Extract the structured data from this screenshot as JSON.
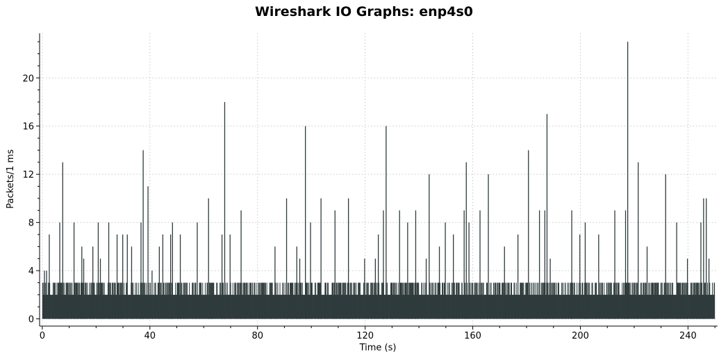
{
  "chart_data": {
    "type": "bar",
    "title": "Wireshark IO Graphs: enp4s0",
    "xlabel": "Time (s)",
    "ylabel": "Packets/1 ms",
    "xlim": [
      -1,
      251
    ],
    "ylim": [
      -0.6,
      23.7
    ],
    "xticks": [
      0,
      40,
      80,
      120,
      160,
      200,
      240
    ],
    "yticks": [
      0,
      4,
      8,
      12,
      16,
      20
    ],
    "grid": true,
    "bar_color": "#2f3b3c",
    "baseline": {
      "description": "dense background traffic, 0-3 packets per 1 ms interval",
      "x_range": [
        0,
        250
      ],
      "typical_max": 2,
      "frequent_value": 3
    },
    "series": [
      {
        "values": [
          {
            "x": 0.8,
            "y": 4
          },
          {
            "x": 1.6,
            "y": 4
          },
          {
            "x": 2.6,
            "y": 7
          },
          {
            "x": 6.5,
            "y": 8
          },
          {
            "x": 7.6,
            "y": 13
          },
          {
            "x": 11.8,
            "y": 8
          },
          {
            "x": 14.7,
            "y": 6
          },
          {
            "x": 15.4,
            "y": 5
          },
          {
            "x": 18.8,
            "y": 6
          },
          {
            "x": 20.8,
            "y": 8
          },
          {
            "x": 21.6,
            "y": 5
          },
          {
            "x": 24.7,
            "y": 8
          },
          {
            "x": 27.8,
            "y": 7
          },
          {
            "x": 29.9,
            "y": 7
          },
          {
            "x": 31.6,
            "y": 7
          },
          {
            "x": 33.2,
            "y": 6
          },
          {
            "x": 36.7,
            "y": 8
          },
          {
            "x": 37.5,
            "y": 14
          },
          {
            "x": 39.3,
            "y": 11
          },
          {
            "x": 40.8,
            "y": 4
          },
          {
            "x": 43.5,
            "y": 6
          },
          {
            "x": 44.8,
            "y": 7
          },
          {
            "x": 47.7,
            "y": 7
          },
          {
            "x": 48.4,
            "y": 8
          },
          {
            "x": 51.3,
            "y": 7
          },
          {
            "x": 57.6,
            "y": 8
          },
          {
            "x": 61.8,
            "y": 10
          },
          {
            "x": 66.8,
            "y": 7
          },
          {
            "x": 67.8,
            "y": 18
          },
          {
            "x": 69.8,
            "y": 7
          },
          {
            "x": 73.9,
            "y": 9
          },
          {
            "x": 86.5,
            "y": 6
          },
          {
            "x": 90.8,
            "y": 10
          },
          {
            "x": 94.6,
            "y": 6
          },
          {
            "x": 95.7,
            "y": 5
          },
          {
            "x": 97.8,
            "y": 16
          },
          {
            "x": 99.7,
            "y": 8
          },
          {
            "x": 103.6,
            "y": 10
          },
          {
            "x": 108.8,
            "y": 9
          },
          {
            "x": 113.8,
            "y": 10
          },
          {
            "x": 119.8,
            "y": 5
          },
          {
            "x": 123.8,
            "y": 5
          },
          {
            "x": 124.9,
            "y": 7
          },
          {
            "x": 126.8,
            "y": 9
          },
          {
            "x": 127.8,
            "y": 16
          },
          {
            "x": 132.8,
            "y": 9
          },
          {
            "x": 135.8,
            "y": 8
          },
          {
            "x": 138.8,
            "y": 9
          },
          {
            "x": 142.7,
            "y": 5
          },
          {
            "x": 143.8,
            "y": 12
          },
          {
            "x": 147.6,
            "y": 6
          },
          {
            "x": 149.8,
            "y": 8
          },
          {
            "x": 152.8,
            "y": 7
          },
          {
            "x": 156.8,
            "y": 9
          },
          {
            "x": 157.6,
            "y": 13
          },
          {
            "x": 158.6,
            "y": 8
          },
          {
            "x": 162.7,
            "y": 9
          },
          {
            "x": 165.8,
            "y": 12
          },
          {
            "x": 171.8,
            "y": 6
          },
          {
            "x": 176.8,
            "y": 7
          },
          {
            "x": 180.7,
            "y": 14
          },
          {
            "x": 184.8,
            "y": 9
          },
          {
            "x": 186.8,
            "y": 9
          },
          {
            "x": 187.6,
            "y": 17
          },
          {
            "x": 188.8,
            "y": 5
          },
          {
            "x": 196.8,
            "y": 9
          },
          {
            "x": 199.8,
            "y": 7
          },
          {
            "x": 201.8,
            "y": 8
          },
          {
            "x": 206.8,
            "y": 7
          },
          {
            "x": 212.8,
            "y": 9
          },
          {
            "x": 216.8,
            "y": 9
          },
          {
            "x": 217.6,
            "y": 23
          },
          {
            "x": 221.5,
            "y": 13
          },
          {
            "x": 224.8,
            "y": 6
          },
          {
            "x": 231.7,
            "y": 12
          },
          {
            "x": 235.8,
            "y": 8
          },
          {
            "x": 239.8,
            "y": 5
          },
          {
            "x": 244.8,
            "y": 8
          },
          {
            "x": 245.8,
            "y": 10
          },
          {
            "x": 246.8,
            "y": 10
          },
          {
            "x": 247.8,
            "y": 5
          }
        ]
      }
    ]
  }
}
